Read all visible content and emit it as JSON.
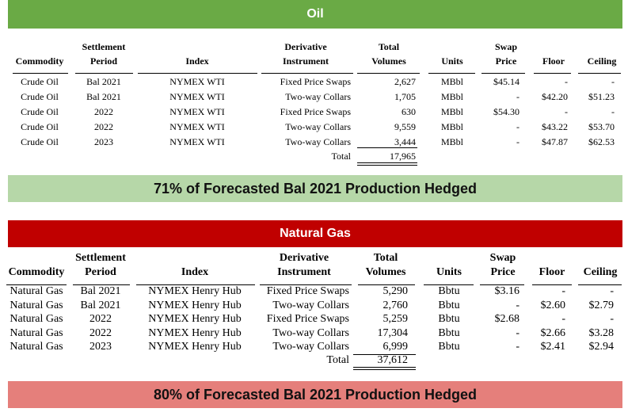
{
  "oil": {
    "title": "Oil",
    "headers": {
      "commodity": "Commodity",
      "settlement_1": "Settlement",
      "settlement_2": "Period",
      "index": "Index",
      "derivative_1": "Derivative",
      "derivative_2": "Instrument",
      "total_1": "Total",
      "total_2": "Volumes",
      "units": "Units",
      "swap_1": "Swap",
      "swap_2": "Price",
      "floor": "Floor",
      "ceiling": "Ceiling"
    },
    "rows": [
      {
        "commodity": "Crude Oil",
        "period": "Bal 2021",
        "index": "NYMEX WTI",
        "instrument": "Fixed Price Swaps",
        "volumes": "2,627",
        "units": "MBbl",
        "swap": "$45.14",
        "floor": "-",
        "ceiling": "-"
      },
      {
        "commodity": "Crude Oil",
        "period": "Bal 2021",
        "index": "NYMEX WTI",
        "instrument": "Two-way Collars",
        "volumes": "1,705",
        "units": "MBbl",
        "swap": "-",
        "floor": "$42.20",
        "ceiling": "$51.23"
      },
      {
        "commodity": "Crude Oil",
        "period": "2022",
        "index": "NYMEX WTI",
        "instrument": "Fixed Price Swaps",
        "volumes": "630",
        "units": "MBbl",
        "swap": "$54.30",
        "floor": "-",
        "ceiling": "-"
      },
      {
        "commodity": "Crude Oil",
        "period": "2022",
        "index": "NYMEX WTI",
        "instrument": "Two-way Collars",
        "volumes": "9,559",
        "units": "MBbl",
        "swap": "-",
        "floor": "$43.22",
        "ceiling": "$53.70"
      },
      {
        "commodity": "Crude Oil",
        "period": "2023",
        "index": "NYMEX WTI",
        "instrument": "Two-way Collars",
        "volumes": "3,444",
        "units": "MBbl",
        "swap": "-",
        "floor": "$47.87",
        "ceiling": "$62.53"
      }
    ],
    "total_label": "Total",
    "total_value": "17,965",
    "summary": "71% of Forecasted Bal 2021 Production Hedged"
  },
  "gas": {
    "title": "Natural Gas",
    "headers": {
      "commodity": "Commodity",
      "settlement_1": "Settlement",
      "settlement_2": "Period",
      "index": "Index",
      "derivative_1": "Derivative",
      "derivative_2": "Instrument",
      "total_1": "Total",
      "total_2": "Volumes",
      "units": "Units",
      "swap_1": "Swap",
      "swap_2": "Price",
      "floor": "Floor",
      "ceiling": "Ceiling"
    },
    "rows": [
      {
        "commodity": "Natural Gas",
        "period": "Bal 2021",
        "index": "NYMEX Henry Hub",
        "instrument": "Fixed Price Swaps",
        "volumes": "5,290",
        "units": "Bbtu",
        "swap": "$3.16",
        "floor": "-",
        "ceiling": "-"
      },
      {
        "commodity": "Natural Gas",
        "period": "Bal 2021",
        "index": "NYMEX Henry Hub",
        "instrument": "Two-way Collars",
        "volumes": "2,760",
        "units": "Bbtu",
        "swap": "-",
        "floor": "$2.60",
        "ceiling": "$2.79"
      },
      {
        "commodity": "Natural Gas",
        "period": "2022",
        "index": "NYMEX Henry Hub",
        "instrument": "Fixed Price Swaps",
        "volumes": "5,259",
        "units": "Bbtu",
        "swap": "$2.68",
        "floor": "-",
        "ceiling": "-"
      },
      {
        "commodity": "Natural Gas",
        "period": "2022",
        "index": "NYMEX Henry Hub",
        "instrument": "Two-way Collars",
        "volumes": "17,304",
        "units": "Bbtu",
        "swap": "-",
        "floor": "$2.66",
        "ceiling": "$3.28"
      },
      {
        "commodity": "Natural Gas",
        "period": "2023",
        "index": "NYMEX Henry Hub",
        "instrument": "Two-way Collars",
        "volumes": "6,999",
        "units": "Bbtu",
        "swap": "-",
        "floor": "$2.41",
        "ceiling": "$2.94"
      }
    ],
    "total_label": "Total",
    "total_value": "37,612",
    "summary": "80% of Forecasted Bal 2021 Production Hedged"
  },
  "colors": {
    "oil_header": "#6aaa45",
    "oil_summary": "#b6d7a8",
    "gas_header": "#c00000",
    "gas_summary": "#e57f7b"
  }
}
